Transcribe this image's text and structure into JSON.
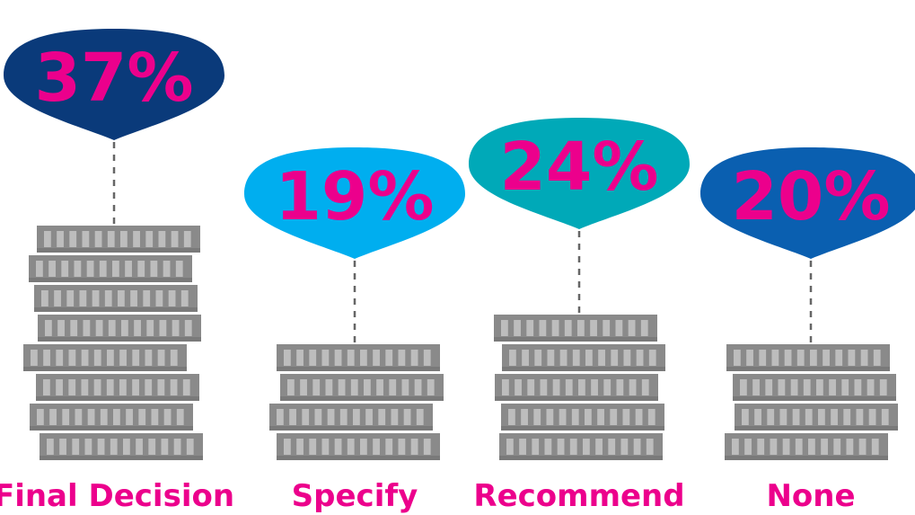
{
  "chart_data": {
    "type": "bar",
    "title": "",
    "categories": [
      "Final Decision",
      "Specify",
      "Recommend",
      "None"
    ],
    "values": [
      37,
      19,
      24,
      20
    ],
    "value_labels": [
      "37%",
      "19%",
      "24%",
      "20%"
    ],
    "unit": "%",
    "colors": {
      "bubbles": [
        "#0a3a7a",
        "#00aeef",
        "#00a9b8",
        "#0a5fb0"
      ],
      "value_text": "#ec008c",
      "category_text": "#ec008c",
      "coin": "#8a8a8a",
      "coin_light": "#bdbdbd",
      "connector": "#666666"
    }
  }
}
